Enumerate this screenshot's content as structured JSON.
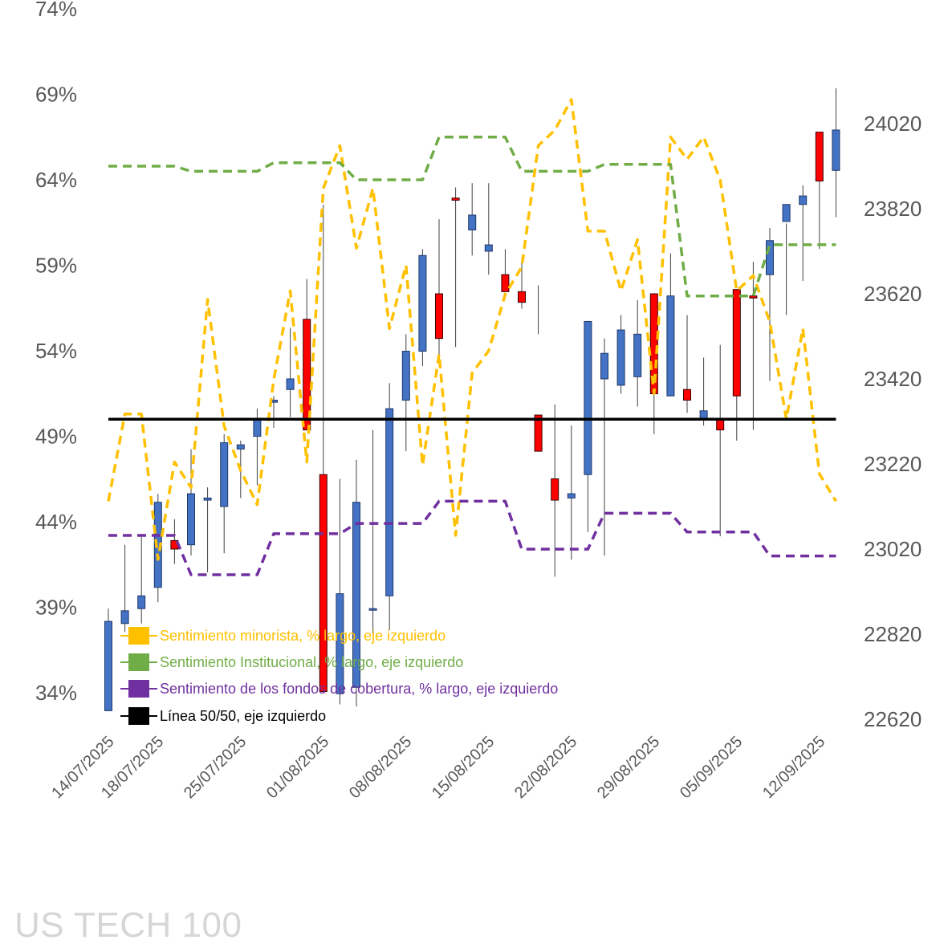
{
  "chart_data": {
    "type": "candlestick-line",
    "watermark": "US TECH 100",
    "left_axis": {
      "ticks": [
        "74%",
        "69%",
        "64%",
        "59%",
        "54%",
        "49%",
        "44%",
        "39%",
        "34%"
      ],
      "min": 33,
      "max": 74
    },
    "right_axis": {
      "ticks": [
        "24020",
        "23820",
        "23620",
        "23420",
        "23220",
        "23020",
        "22820",
        "22620"
      ],
      "min": 22620,
      "max": 24020
    },
    "x_tick_labels": [
      "14/07/2025",
      "18/07/2025",
      "25/07/2025",
      "01/08/2025",
      "08/08/2025",
      "15/08/2025",
      "22/08/2025",
      "29/08/2025",
      "05/09/2025",
      "12/09/2025"
    ],
    "x_tick_positions": [
      0,
      3,
      8,
      13,
      18,
      23,
      28,
      33,
      38,
      43
    ],
    "dates": [
      "14/07/2025",
      "15/07/2025",
      "16/07/2025",
      "17/07/2025",
      "18/07/2025",
      "21/07/2025",
      "22/07/2025",
      "23/07/2025",
      "24/07/2025",
      "25/07/2025",
      "28/07/2025",
      "29/07/2025",
      "30/07/2025",
      "31/07/2025",
      "01/08/2025",
      "04/08/2025",
      "05/08/2025",
      "06/08/2025",
      "07/08/2025",
      "08/08/2025",
      "11/08/2025",
      "12/08/2025",
      "13/08/2025",
      "14/08/2025",
      "15/08/2025",
      "18/08/2025",
      "19/08/2025",
      "20/08/2025",
      "21/08/2025",
      "22/08/2025",
      "25/08/2025",
      "26/08/2025",
      "27/08/2025",
      "28/08/2025",
      "29/08/2025",
      "01/09/2025",
      "02/09/2025",
      "03/09/2025",
      "04/09/2025",
      "05/09/2025",
      "08/09/2025",
      "09/09/2025",
      "10/09/2025",
      "11/09/2025",
      "12/09/2025"
    ],
    "candles": {
      "open": [
        22640,
        22845,
        22880,
        22930,
        23040,
        23030,
        23135,
        23120,
        23255,
        23285,
        23365,
        23395,
        23560,
        23195,
        22680,
        22695,
        22880,
        22910,
        23370,
        23485,
        23620,
        23845,
        23770,
        23720,
        23665,
        23625,
        23335,
        23185,
        23140,
        23195,
        23420,
        23405,
        23425,
        23620,
        23380,
        23395,
        23325,
        23325,
        23630,
        23615,
        23665,
        23790,
        23830,
        24000,
        null
      ],
      "close": [
        22850,
        22875,
        22910,
        23130,
        23020,
        23150,
        23140,
        23270,
        23265,
        23325,
        23370,
        23420,
        23300,
        22685,
        22915,
        23130,
        22880,
        23350,
        23485,
        23710,
        23515,
        23840,
        23805,
        23735,
        23625,
        23600,
        23250,
        23135,
        23150,
        23555,
        23480,
        23535,
        23525,
        23385,
        23615,
        23370,
        23345,
        23300,
        23380,
        23610,
        23745,
        23830,
        23850,
        23885,
        24005
      ],
      "high": [
        22880,
        23030,
        23055,
        23150,
        23090,
        23255,
        23165,
        23290,
        23275,
        23350,
        23380,
        23540,
        23655,
        23830,
        23185,
        23230,
        23300,
        23410,
        23525,
        23725,
        23795,
        23870,
        23880,
        23880,
        23725,
        23705,
        23640,
        23360,
        23310,
        23515,
        23515,
        23570,
        23605,
        23620,
        23715,
        23570,
        23470,
        23500,
        23455,
        23695,
        23775,
        23785,
        23875,
        24000,
        24103
      ],
      "low": [
        22650,
        22825,
        22845,
        22895,
        22985,
        23005,
        22965,
        23010,
        23140,
        23170,
        23305,
        23330,
        23350,
        23180,
        22655,
        22650,
        22820,
        22830,
        23250,
        23450,
        23455,
        23495,
        23710,
        23665,
        23640,
        23585,
        23525,
        22955,
        22995,
        23060,
        23005,
        23385,
        23355,
        23290,
        23400,
        23340,
        23310,
        23050,
        23275,
        23300,
        23415,
        23570,
        23650,
        23725,
        23800
      ]
    },
    "series": [
      {
        "name": "Sentimiento minorista, % largo, eje izquierdo",
        "color": "#FFC000",
        "axis": "left",
        "values": [
          45.2,
          50.3,
          50.3,
          41.8,
          47.5,
          46,
          57,
          49.6,
          47,
          45,
          52.3,
          57.5,
          47.5,
          63.5,
          66,
          60,
          63.5,
          55.3,
          59,
          47.3,
          53.8,
          43.2,
          52.7,
          54,
          57.3,
          58.9,
          66,
          66.9,
          68.7,
          61,
          61,
          57.5,
          60.5,
          51.5,
          66.5,
          65.2,
          66.5,
          64,
          57.5,
          58.4,
          55.7,
          50,
          55.3,
          46.8,
          45.2
        ]
      },
      {
        "name": "Sentimiento Institucional, % largo, eje izquierdo",
        "color": "#70AD47",
        "axis": "left",
        "values": [
          64.8,
          64.8,
          64.8,
          64.8,
          64.8,
          64.5,
          64.5,
          64.5,
          64.5,
          64.5,
          65,
          65,
          65,
          65,
          65,
          64,
          64,
          64,
          64,
          64,
          66.5,
          66.5,
          66.5,
          66.5,
          66.5,
          64.5,
          64.5,
          64.5,
          64.5,
          64.5,
          64.9,
          64.9,
          64.9,
          64.9,
          64.9,
          57.2,
          57.2,
          57.2,
          57.2,
          57.2,
          60.2,
          60.2,
          60.2,
          60.2,
          60.2
        ]
      },
      {
        "name": "Sentimiento de los fondos de cobertura, % largo, eje izquierdo",
        "color": "#7030A0",
        "axis": "left",
        "values": [
          43.2,
          43.2,
          43.2,
          43.2,
          43.2,
          40.9,
          40.9,
          40.9,
          40.9,
          40.9,
          43.3,
          43.3,
          43.3,
          43.3,
          43.3,
          43.9,
          43.9,
          43.9,
          43.9,
          43.9,
          45.2,
          45.2,
          45.2,
          45.2,
          45.2,
          42.4,
          42.4,
          42.4,
          42.4,
          42.4,
          44.5,
          44.5,
          44.5,
          44.5,
          44.5,
          43.4,
          43.4,
          43.4,
          43.4,
          43.4,
          42,
          42,
          42,
          42,
          42
        ]
      },
      {
        "name": "Línea 50/50, eje izquierdo",
        "color": "#000000",
        "axis": "left",
        "values": [
          50,
          50,
          50,
          50,
          50,
          50,
          50,
          50,
          50,
          50,
          50,
          50,
          50,
          50,
          50,
          50,
          50,
          50,
          50,
          50,
          50,
          50,
          50,
          50,
          50,
          50,
          50,
          50,
          50,
          50,
          50,
          50,
          50,
          50,
          50,
          50,
          50,
          50,
          50,
          50,
          50,
          50,
          50,
          50,
          50
        ]
      }
    ],
    "candle_colors": {
      "up": "#4472C4",
      "down": "#FF0000"
    }
  }
}
